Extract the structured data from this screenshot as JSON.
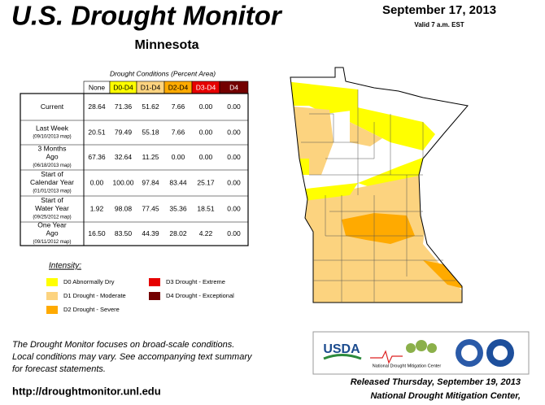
{
  "header": {
    "title": "U.S. Drought Monitor",
    "date": "September 17, 2013",
    "valid": "Valid 7 a.m. EST",
    "state": "Minnesota"
  },
  "table": {
    "caption": "Drought Conditions (Percent Area)",
    "columns": [
      "None",
      "D0-D4",
      "D1-D4",
      "D2-D4",
      "D3-D4",
      "D4"
    ],
    "rows": [
      {
        "label": "Current",
        "sublabel": null,
        "values": [
          "28.64",
          "71.36",
          "51.62",
          "7.66",
          "0.00",
          "0.00"
        ]
      },
      {
        "label": "Last Week",
        "sublabel": "(09/10/2013 map)",
        "values": [
          "20.51",
          "79.49",
          "55.18",
          "7.66",
          "0.00",
          "0.00"
        ]
      },
      {
        "label": "3 Months Ago",
        "sublabel": "(06/18/2013 map)",
        "values": [
          "67.36",
          "32.64",
          "11.25",
          "0.00",
          "0.00",
          "0.00"
        ]
      },
      {
        "label": "Start of Calendar Year",
        "sublabel": "(01/01/2013 map)",
        "values": [
          "0.00",
          "100.00",
          "97.84",
          "83.44",
          "25.17",
          "0.00"
        ]
      },
      {
        "label": "Start of Water Year",
        "sublabel": "(09/25/2012 map)",
        "values": [
          "1.92",
          "98.08",
          "77.45",
          "35.36",
          "18.51",
          "0.00"
        ]
      },
      {
        "label": "One Year Ago",
        "sublabel": "(09/11/2012 map)",
        "values": [
          "16.50",
          "83.50",
          "44.39",
          "28.02",
          "4.22",
          "0.00"
        ]
      }
    ]
  },
  "legend": {
    "title": "Intensity:",
    "items": [
      {
        "label": "D0 Abnormally Dry",
        "color": "#ffff00"
      },
      {
        "label": "D1 Drought - Moderate",
        "color": "#fcd37f"
      },
      {
        "label": "D2 Drought - Severe",
        "color": "#ffaa00"
      },
      {
        "label": "D3 Drought - Extreme",
        "color": "#e60000"
      },
      {
        "label": "D4 Drought - Exceptional",
        "color": "#730000"
      }
    ]
  },
  "footer": {
    "note": [
      "The Drought Monitor focuses on broad-scale conditions.",
      "Local conditions may vary. See accompanying text summary",
      "for forecast statements."
    ],
    "url": "http://droughtmonitor.unl.edu",
    "released": [
      "Released Thursday, September 19, 2013",
      "National Drought Mitigation Center,"
    ],
    "logos": [
      "USDA",
      "National Drought Mitigation Center"
    ]
  }
}
